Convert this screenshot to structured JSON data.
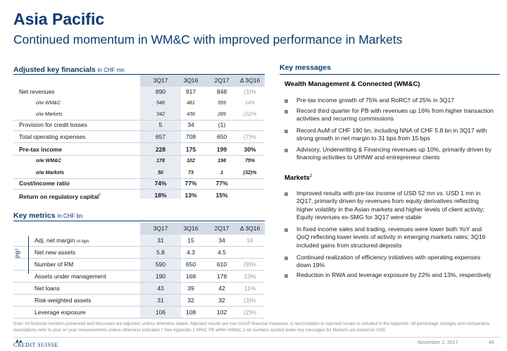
{
  "title": "Asia Pacific",
  "subtitle": "Continued momentum in WM&C with improved performance in Markets",
  "financials": {
    "heading": "Adjusted key financials",
    "unit": "in CHF mn",
    "columns": [
      "3Q17",
      "3Q16",
      "2Q17",
      "Δ 3Q16"
    ],
    "rows": [
      {
        "label": "Net revenues",
        "v": [
          "890",
          "917",
          "848",
          "(3)%"
        ]
      },
      {
        "label": "o/w WM&C",
        "v": [
          "548",
          "481",
          "559",
          "14%"
        ]
      },
      {
        "label": "o/w Markets",
        "v": [
          "342",
          "436",
          "289",
          "(22)%"
        ]
      },
      {
        "label": "Provision for credit losses",
        "v": [
          "5",
          "34",
          "(1)",
          ""
        ]
      },
      {
        "label": "Total operating expenses",
        "v": [
          "657",
          "708",
          "650",
          "(7)%"
        ]
      },
      {
        "label": "Pre-tax income",
        "v": [
          "228",
          "175",
          "199",
          "30%"
        ]
      },
      {
        "label": "o/w WM&C",
        "v": [
          "178",
          "102",
          "198",
          "75%"
        ]
      },
      {
        "label": "o/w Markets",
        "v": [
          "50",
          "73",
          "1",
          "(32)%"
        ]
      },
      {
        "label": "Cost/income ratio",
        "v": [
          "74%",
          "77%",
          "77%",
          ""
        ]
      },
      {
        "label": "Return on regulatory capital",
        "sup": "†",
        "v": [
          "18%",
          "13%",
          "15%",
          ""
        ]
      }
    ]
  },
  "metrics": {
    "heading": "Key metrics",
    "unit": "in CHF bn",
    "columns": [
      "3Q17",
      "3Q16",
      "2Q17",
      "Δ 3Q16"
    ],
    "pb_label": "PB",
    "pb_sup": "1",
    "rows": [
      {
        "label": "Adj. net margin",
        "unit": "in bps",
        "v": [
          "31",
          "15",
          "34",
          "16"
        ]
      },
      {
        "label": "Net new assets",
        "v": [
          "5.8",
          "4.3",
          "4.5",
          ""
        ]
      },
      {
        "label": "Number of RM",
        "v": [
          "590",
          "650",
          "610",
          "(9)%"
        ]
      },
      {
        "label": "Assets under management",
        "v": [
          "190",
          "168",
          "178",
          "13%"
        ]
      },
      {
        "label": "Net loans",
        "v": [
          "43",
          "39",
          "42",
          "11%"
        ]
      },
      {
        "label": "Risk-weighted assets",
        "v": [
          "31",
          "32",
          "32",
          "(3)%"
        ]
      },
      {
        "label": "Leverage exposure",
        "v": [
          "106",
          "108",
          "102",
          "(2)%"
        ]
      }
    ]
  },
  "messages": {
    "heading": "Key messages",
    "wmc_heading": "Wealth Management & Connected (WM&C)",
    "wmc_bullets": [
      "Pre-tax income growth of 75% and RoRC† of 25% in 3Q17",
      "Record third quarter for PB with revenues up 16% from higher transaction activities and recurring commissions",
      "Record AuM of CHF 190 bn, including NNA of CHF 5.8 bn in 3Q17 with strong growth in net margin to 31 bps from 15 bps",
      "Advisory, Underwriting & Financing revenues up 10%, primarily driven by financing activities to UHNW and entrepreneur clients"
    ],
    "markets_heading": "Markets",
    "markets_sup": "2",
    "markets_bullets": [
      "Improved results with pre-tax income of USD 52 mn vs. USD 1 mn in 2Q17, primarily driven by revenues from equity derivatives reflecting higher volatility in the Asian markets and higher levels of client activity; Equity revenues ex-SMG for 3Q17 were stable",
      "In fixed income sales and trading, revenues were lower both YoY and QoQ reflecting lower levels of activity in emerging markets rates; 3Q16 included gains from structured deposits",
      "Continued realization of efficiency initiatives with operating expenses down 19%",
      "Reduction in RWA and leverage exposure by 22% and 13%, respectively"
    ]
  },
  "footnote": "Note: All financial numbers presented and discussed are adjusted, unless otherwise stated. Adjusted results are non-GAAP financial measures. A reconciliation to reported results is included in the Appendix. All percentage changes and comparative descriptions refer to year on year measurements unless otherwise indicated    † See Appendix    1 APAC PB within WM&C    2 All numbers quoted under key messages for Markets are based on USD",
  "logo": "CREDIT SUISSE",
  "date": "November 2, 2017",
  "page": "46"
}
